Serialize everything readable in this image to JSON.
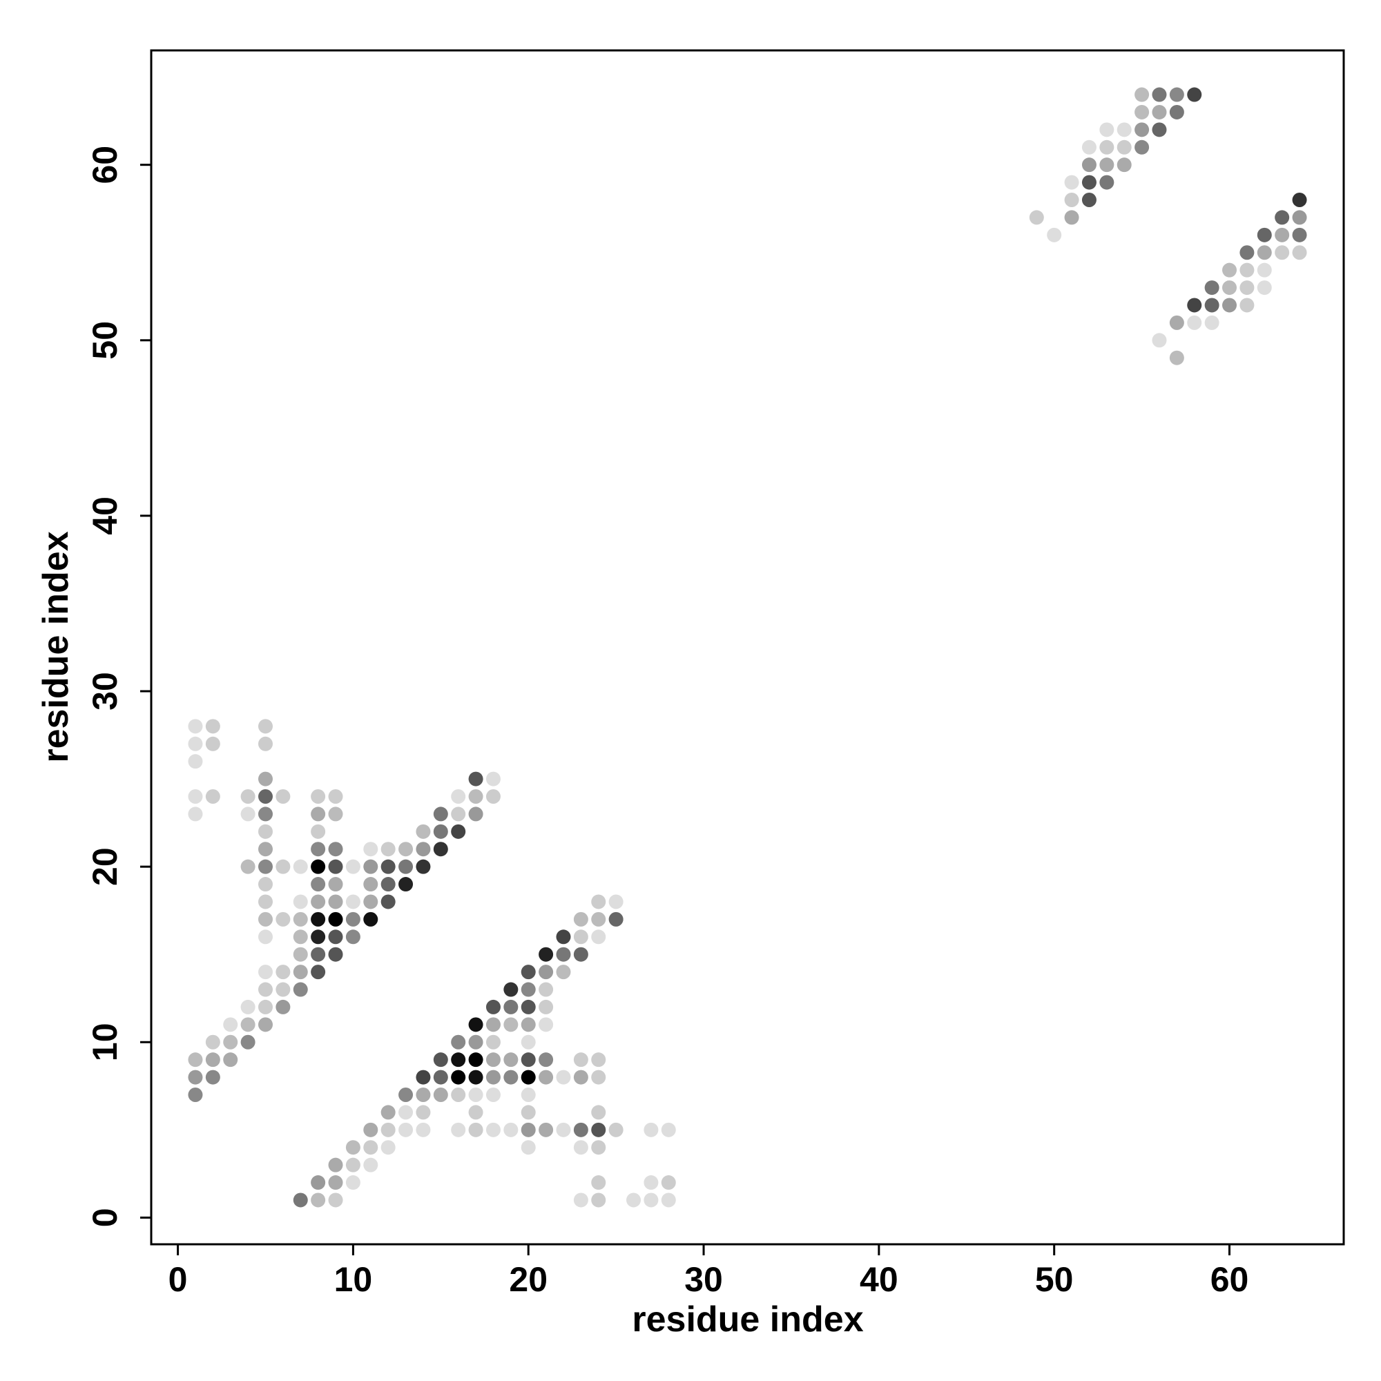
{
  "chart_data": {
    "type": "scatter",
    "xlabel": "residue index",
    "ylabel": "residue index",
    "xlim": [
      -1.52,
      66.52
    ],
    "ylim": [
      -1.52,
      66.52
    ],
    "xticks": [
      0,
      10,
      20,
      30,
      40,
      50,
      60
    ],
    "yticks": [
      0,
      10,
      20,
      30,
      40,
      50,
      60
    ],
    "x": [
      55,
      56,
      57,
      58,
      55,
      56,
      57,
      53,
      54,
      55,
      56,
      52,
      53,
      54,
      55,
      52,
      53,
      54,
      51,
      52,
      53,
      51,
      52,
      64,
      49,
      51,
      63,
      64,
      50,
      62,
      63,
      64,
      61,
      62,
      63,
      64,
      60,
      61,
      62,
      59,
      60,
      61,
      62,
      58,
      59,
      60,
      61,
      57,
      58,
      59,
      56,
      57,
      1,
      2,
      5,
      1,
      2,
      5,
      1,
      5,
      17,
      18,
      1,
      2,
      4,
      5,
      6,
      8,
      9,
      16,
      17,
      18,
      1,
      4,
      5,
      8,
      9,
      15,
      16,
      17,
      5,
      8,
      14,
      15,
      16,
      5,
      8,
      9,
      11,
      12,
      13,
      14,
      15,
      4,
      5,
      6,
      7,
      8,
      9,
      10,
      11,
      12,
      13,
      14,
      5,
      8,
      9,
      11,
      12,
      13,
      5,
      7,
      8,
      9,
      10,
      11,
      12,
      24,
      25,
      5,
      6,
      7,
      8,
      9,
      10,
      11,
      23,
      24,
      25,
      5,
      7,
      8,
      9,
      10,
      22,
      23,
      24,
      7,
      8,
      9,
      21,
      22,
      23,
      5,
      6,
      7,
      8,
      20,
      21,
      22,
      5,
      6,
      7,
      19,
      20,
      21,
      4,
      5,
      6,
      18,
      19,
      20,
      21,
      3,
      4,
      5,
      17,
      18,
      19,
      20,
      21,
      2,
      3,
      4,
      16,
      17,
      18,
      20,
      1,
      2,
      3,
      15,
      16,
      17,
      18,
      19,
      20,
      21,
      23,
      24,
      1,
      2,
      14,
      15,
      16,
      17,
      18,
      19,
      20,
      21,
      22,
      23,
      24,
      1,
      13,
      14,
      15,
      16,
      17,
      18,
      20,
      12,
      13,
      14,
      17,
      20,
      24,
      11,
      12,
      13,
      14,
      16,
      17,
      18,
      19,
      20,
      21,
      22,
      23,
      24,
      25,
      27,
      28,
      10,
      11,
      12,
      20,
      23,
      24,
      9,
      10,
      11,
      8,
      9,
      10,
      24,
      27,
      28,
      7,
      8,
      9,
      23,
      24,
      26,
      27,
      28
    ],
    "y": [
      64,
      64,
      64,
      64,
      63,
      63,
      63,
      62,
      62,
      62,
      62,
      61,
      61,
      61,
      61,
      60,
      60,
      60,
      59,
      59,
      59,
      58,
      58,
      58,
      57,
      57,
      57,
      57,
      56,
      56,
      56,
      56,
      55,
      55,
      55,
      55,
      54,
      54,
      54,
      53,
      53,
      53,
      53,
      52,
      52,
      52,
      52,
      51,
      51,
      51,
      50,
      49,
      28,
      28,
      28,
      27,
      27,
      27,
      26,
      25,
      25,
      25,
      24,
      24,
      24,
      24,
      24,
      24,
      24,
      24,
      24,
      24,
      23,
      23,
      23,
      23,
      23,
      23,
      23,
      23,
      22,
      22,
      22,
      22,
      22,
      21,
      21,
      21,
      21,
      21,
      21,
      21,
      21,
      20,
      20,
      20,
      20,
      20,
      20,
      20,
      20,
      20,
      20,
      20,
      19,
      19,
      19,
      19,
      19,
      19,
      18,
      18,
      18,
      18,
      18,
      18,
      18,
      18,
      18,
      17,
      17,
      17,
      17,
      17,
      17,
      17,
      17,
      17,
      17,
      16,
      16,
      16,
      16,
      16,
      16,
      16,
      16,
      15,
      15,
      15,
      15,
      15,
      15,
      14,
      14,
      14,
      14,
      14,
      14,
      14,
      13,
      13,
      13,
      13,
      13,
      13,
      12,
      12,
      12,
      12,
      12,
      12,
      12,
      11,
      11,
      11,
      11,
      11,
      11,
      11,
      11,
      10,
      10,
      10,
      10,
      10,
      10,
      10,
      9,
      9,
      9,
      9,
      9,
      9,
      9,
      9,
      9,
      9,
      9,
      9,
      8,
      8,
      8,
      8,
      8,
      8,
      8,
      8,
      8,
      8,
      8,
      8,
      8,
      7,
      7,
      7,
      7,
      7,
      7,
      7,
      7,
      6,
      6,
      6,
      6,
      6,
      6,
      5,
      5,
      5,
      5,
      5,
      5,
      5,
      5,
      5,
      5,
      5,
      5,
      5,
      5,
      5,
      5,
      4,
      4,
      4,
      4,
      4,
      4,
      3,
      3,
      3,
      2,
      2,
      2,
      2,
      2,
      2,
      1,
      1,
      1,
      1,
      1,
      1,
      1,
      1
    ],
    "colors": [
      "#bbb",
      "#777",
      "#888",
      "#444",
      "#bbb",
      "#aaa",
      "#777",
      "#ddd",
      "#ddd",
      "#999",
      "#666",
      "#ddd",
      "#ccc",
      "#ccc",
      "#888",
      "#999",
      "#aaa",
      "#aaa",
      "#ddd",
      "#555",
      "#777",
      "#ccc",
      "#555",
      "#333",
      "#ccc",
      "#aaa",
      "#666",
      "#999",
      "#ddd",
      "#666",
      "#aaa",
      "#777",
      "#777",
      "#aaa",
      "#ccc",
      "#ccc",
      "#bbb",
      "#ccc",
      "#ddd",
      "#777",
      "#bbb",
      "#ccc",
      "#ddd",
      "#444",
      "#666",
      "#999",
      "#ccc",
      "#aaa",
      "#ddd",
      "#ddd",
      "#ddd",
      "#bbb",
      "#ddd",
      "#ccc",
      "#ccc",
      "#ddd",
      "#ccc",
      "#ccc",
      "#ddd",
      "#aaa",
      "#555",
      "#ddd",
      "#ddd",
      "#ccc",
      "#ccc",
      "#666",
      "#ccc",
      "#ccc",
      "#ccc",
      "#ddd",
      "#bbb",
      "#ccc",
      "#ddd",
      "#ddd",
      "#888",
      "#aaa",
      "#bbb",
      "#777",
      "#ccc",
      "#999",
      "#ccc",
      "#ccc",
      "#bbb",
      "#777",
      "#444",
      "#aaa",
      "#888",
      "#888",
      "#ddd",
      "#ccc",
      "#bbb",
      "#999",
      "#333",
      "#bbb",
      "#888",
      "#ccc",
      "#ddd",
      "#000",
      "#555",
      "#ddd",
      "#999",
      "#555",
      "#777",
      "#333",
      "#ccc",
      "#888",
      "#aaa",
      "#aaa",
      "#666",
      "#222",
      "#ccc",
      "#ddd",
      "#aaa",
      "#aaa",
      "#ddd",
      "#aaa",
      "#555",
      "#ccc",
      "#ddd",
      "#bbb",
      "#ccc",
      "#bbb",
      "#111",
      "#000",
      "#888",
      "#111",
      "#bbb",
      "#bbb",
      "#666",
      "#ddd",
      "#bbb",
      "#222",
      "#555",
      "#888",
      "#444",
      "#ccc",
      "#ddd",
      "#bbb",
      "#666",
      "#555",
      "#222",
      "#777",
      "#666",
      "#ddd",
      "#ccc",
      "#aaa",
      "#555",
      "#555",
      "#999",
      "#bbb",
      "#ccc",
      "#ccc",
      "#888",
      "#333",
      "#888",
      "#ccc",
      "#ddd",
      "#ccc",
      "#999",
      "#555",
      "#777",
      "#555",
      "#ccc",
      "#ddd",
      "#bbb",
      "#aaa",
      "#111",
      "#aaa",
      "#bbb",
      "#aaa",
      "#ddd",
      "#ccc",
      "#bbb",
      "#888",
      "#888",
      "#999",
      "#ccc",
      "#ddd",
      "#bbb",
      "#aaa",
      "#aaa",
      "#555",
      "#111",
      "#000",
      "#aaa",
      "#aaa",
      "#555",
      "#888",
      "#ccc",
      "#ccc",
      "#999",
      "#888",
      "#444",
      "#666",
      "#000",
      "#111",
      "#999",
      "#888",
      "#000",
      "#aaa",
      "#ddd",
      "#aaa",
      "#ccc",
      "#888",
      "#888",
      "#aaa",
      "#aaa",
      "#ccc",
      "#ddd",
      "#ddd",
      "#ddd",
      "#aaa",
      "#ddd",
      "#ccc",
      "#ccc",
      "#ccc",
      "#ccc",
      "#aaa",
      "#ccc",
      "#ddd",
      "#ddd",
      "#ddd",
      "#ccc",
      "#ddd",
      "#ddd",
      "#999",
      "#aaa",
      "#ddd",
      "#777",
      "#555",
      "#ccc",
      "#ddd",
      "#ddd",
      "#bbb",
      "#ccc",
      "#ddd",
      "#ddd",
      "#ddd",
      "#ccc",
      "#aaa",
      "#ccc",
      "#ddd",
      "#999",
      "#aaa",
      "#ddd",
      "#ccc",
      "#ddd",
      "#ccc",
      "#777",
      "#bbb",
      "#ccc",
      "#ddd",
      "#ccc",
      "#ddd",
      "#ddd",
      "#ddd"
    ]
  }
}
